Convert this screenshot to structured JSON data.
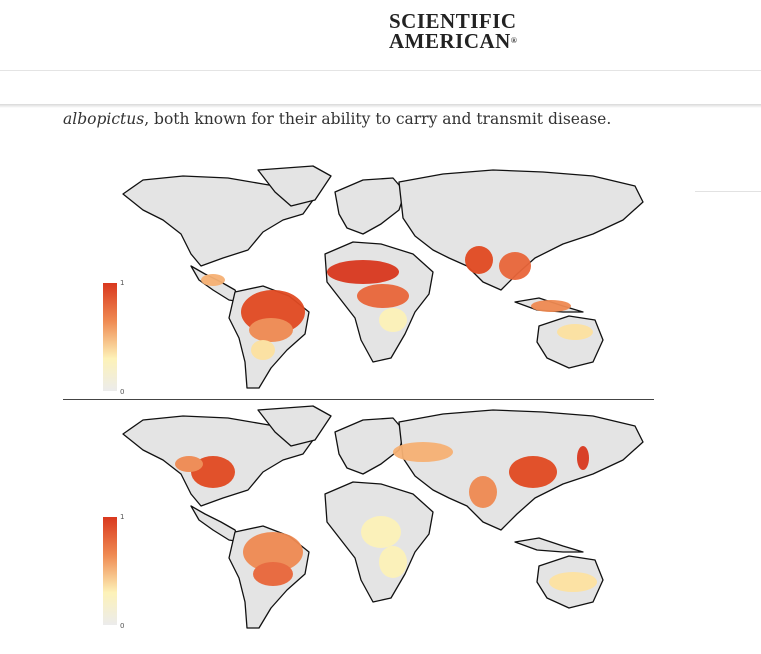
{
  "header": {
    "brand_line1": "SCIENTIFIC",
    "brand_line2": "AMERICAN",
    "brand_mark": "®"
  },
  "article": {
    "italic_word": "albopictus",
    "text_rest": ", both known for their ability to carry and transmit disease."
  },
  "figure": {
    "maps": [
      {
        "legend_max": "1",
        "legend_min": "0"
      },
      {
        "legend_max": "1",
        "legend_min": "0"
      }
    ],
    "colors": {
      "high": "#d9381e",
      "mid": "#ef8a52",
      "low": "#fdf2b8",
      "none": "#e6e6e6"
    }
  }
}
